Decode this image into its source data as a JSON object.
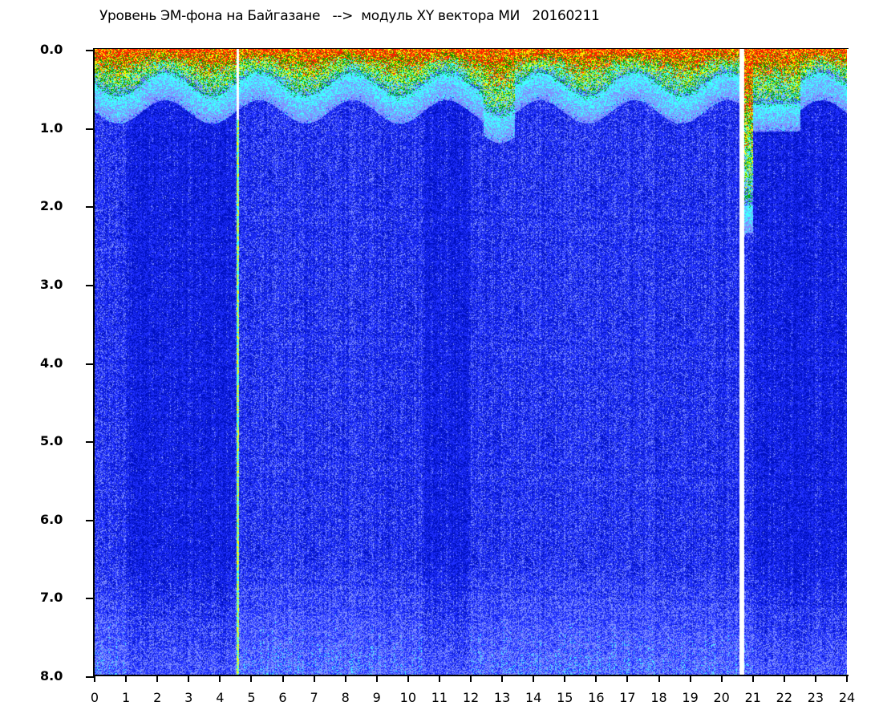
{
  "chart_data": {
    "type": "heatmap",
    "title": "Уровень ЭМ-фона на Байгазане   -->  модуль XY вектора МИ   20160211",
    "xlabel": "",
    "ylabel": "",
    "xlim": [
      0,
      24
    ],
    "ylim": [
      8.0,
      0.0
    ],
    "y_axis_inverted": true,
    "x_ticks": [
      "0",
      "1",
      "2",
      "3",
      "4",
      "5",
      "6",
      "7",
      "8",
      "9",
      "10",
      "11",
      "12",
      "13",
      "14",
      "15",
      "16",
      "17",
      "18",
      "19",
      "20",
      "21",
      "22",
      "23",
      "24"
    ],
    "y_ticks": [
      "0.0",
      "1.0",
      "2.0",
      "3.0",
      "4.0",
      "5.0",
      "6.0",
      "7.0",
      "8.0"
    ],
    "grid": false,
    "colormap_low_to_high": [
      "#0010c0",
      "#2030ff",
      "#8090ff",
      "#40ffff",
      "#00a000",
      "#ffff00",
      "#ff2000"
    ]
  }
}
